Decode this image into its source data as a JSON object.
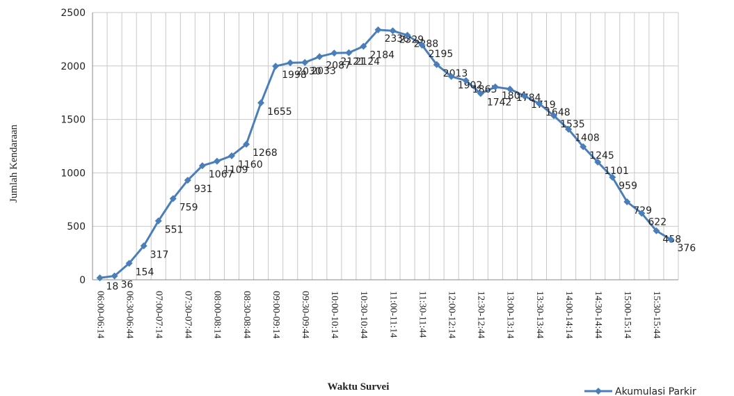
{
  "chart_data": {
    "type": "line",
    "y_label": "Jumlah Kendaraan",
    "x_label": "Waktu Survei",
    "categories": [
      "06:00-06:14",
      null,
      "06:30-06:44",
      null,
      "07:00-07:14",
      null,
      "07:30-07:44",
      null,
      "08:00-08:14",
      null,
      "08:30-08:44",
      null,
      "09:00-09:14",
      null,
      "09:30-09:44",
      null,
      "10:00-10:14",
      null,
      "10:30-10:44",
      null,
      "11:00-11:14",
      null,
      "11:30-11:44",
      null,
      "12:00-12:14",
      null,
      "12:30-12:44",
      null,
      "13:00-13:14",
      null,
      "13:30-13:44",
      null,
      "14:00-14:14",
      null,
      "14:30-14:44",
      null,
      "15:00-15:14",
      null,
      "15:30-15:44",
      null
    ],
    "series": [
      {
        "name": "Akumulasi Parkir",
        "color": "#4a7ebb",
        "values": [
          18,
          36,
          154,
          317,
          551,
          759,
          931,
          1067,
          1109,
          1160,
          1268,
          1655,
          1998,
          2030,
          2033,
          2087,
          2121,
          2124,
          2184,
          2338,
          2329,
          2288,
          2195,
          2013,
          1902,
          1863,
          1742,
          1804,
          1784,
          1719,
          1648,
          1535,
          1408,
          1245,
          1101,
          959,
          729,
          622,
          458,
          376
        ]
      }
    ],
    "ylim": [
      0,
      2500
    ],
    "yticks": [
      0,
      500,
      1000,
      1500,
      2000,
      2500
    ],
    "grid": true,
    "legend": "bottom-right"
  }
}
